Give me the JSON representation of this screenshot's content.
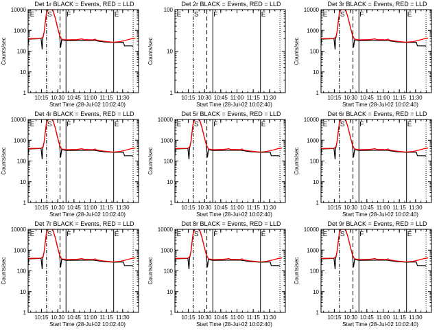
{
  "common": {
    "ylabel": "Counts/sec",
    "xlabel": "Start Time (28-Jul-02 10:02:40)",
    "xticks": [
      {
        "label": "10:15",
        "t": 12.33
      },
      {
        "label": "10:30",
        "t": 27.33
      },
      {
        "label": "10:45",
        "t": 42.33
      },
      {
        "label": "11:00",
        "t": 57.33
      },
      {
        "label": "11:15",
        "t": 72.33
      },
      {
        "label": "11:30",
        "t": 87.33
      }
    ],
    "xrange_minutes": [
      0,
      102
    ],
    "markers": [
      {
        "label": "E",
        "t": 1,
        "style": "none"
      },
      {
        "label": "S",
        "t": 17,
        "style": "dashdot"
      },
      {
        "label": "",
        "t": 29.5,
        "style": "dashed"
      },
      {
        "label": "F",
        "t": 35,
        "style": "solid"
      },
      {
        "label": "E",
        "t": 79,
        "style": "solid"
      },
      {
        "label": "",
        "t": 97,
        "style": "dotted"
      }
    ],
    "colors": {
      "events": "#000000",
      "lld": "#ff0000"
    }
  },
  "chart_data": [
    {
      "type": "line",
      "title": "Det 1r BLACK = Events, RED = LLD",
      "ylim": [
        1,
        10000
      ],
      "yticks": [
        "1",
        "10",
        "100",
        "1000",
        "10000"
      ],
      "has_data": true
    },
    {
      "type": "line",
      "title": "Det 2r BLACK = Events, RED = LLD",
      "ylim": [
        1,
        100
      ],
      "yticks": [
        "1",
        "10",
        "100"
      ],
      "has_data": false
    },
    {
      "type": "line",
      "title": "Det 3r BLACK = Events, RED = LLD",
      "ylim": [
        1,
        10000
      ],
      "yticks": [
        "1",
        "10",
        "100",
        "1000",
        "10000"
      ],
      "has_data": true
    },
    {
      "type": "line",
      "title": "Det 4r BLACK = Events, RED = LLD",
      "ylim": [
        1,
        10000
      ],
      "yticks": [
        "1",
        "10",
        "100",
        "1000",
        "10000"
      ],
      "has_data": true
    },
    {
      "type": "line",
      "title": "Det 5r BLACK = Events, RED = LLD",
      "ylim": [
        1,
        10000
      ],
      "yticks": [
        "1",
        "10",
        "100",
        "1000",
        "10000"
      ],
      "has_data": true
    },
    {
      "type": "line",
      "title": "Det 6r BLACK = Events, RED = LLD",
      "ylim": [
        1,
        10000
      ],
      "yticks": [
        "1",
        "10",
        "100",
        "1000",
        "10000"
      ],
      "has_data": true
    },
    {
      "type": "line",
      "title": "Det 7r BLACK = Events, RED = LLD",
      "ylim": [
        1,
        10000
      ],
      "yticks": [
        "1",
        "10",
        "100",
        "1000",
        "10000"
      ],
      "has_data": true
    },
    {
      "type": "line",
      "title": "Det 8r BLACK = Events, RED = LLD",
      "ylim": [
        1,
        10000
      ],
      "yticks": [
        "1",
        "10",
        "100",
        "1000",
        "10000"
      ],
      "has_data": true
    },
    {
      "type": "line",
      "title": "Det 9r BLACK = Events, RED = LLD",
      "ylim": [
        1,
        10000
      ],
      "yticks": [
        "1",
        "10",
        "100",
        "1000",
        "10000"
      ],
      "has_data": true
    }
  ],
  "series": {
    "events_black": [
      [
        0,
        200
      ],
      [
        0.5,
        380
      ],
      [
        12,
        400
      ],
      [
        13,
        120
      ],
      [
        13.5,
        400
      ],
      [
        15,
        1000
      ],
      [
        16,
        3000
      ],
      [
        17,
        7000
      ],
      [
        19,
        11000
      ],
      [
        21,
        12000
      ],
      [
        23,
        9000
      ],
      [
        25,
        4000
      ],
      [
        27,
        1500
      ],
      [
        29,
        600
      ],
      [
        30,
        150
      ],
      [
        31,
        350
      ],
      [
        35,
        320
      ],
      [
        60,
        330
      ],
      [
        70,
        280
      ],
      [
        79,
        260
      ],
      [
        88,
        270
      ],
      [
        89,
        180
      ],
      [
        96,
        180
      ],
      [
        97,
        170
      ]
    ],
    "lld_red": [
      [
        0,
        400
      ],
      [
        12,
        410
      ],
      [
        14,
        500
      ],
      [
        15,
        1000
      ],
      [
        16,
        3000
      ],
      [
        17,
        7000
      ],
      [
        19,
        11000
      ],
      [
        21,
        12000
      ],
      [
        23,
        9000
      ],
      [
        25,
        4000
      ],
      [
        27,
        1500
      ],
      [
        29,
        600
      ],
      [
        31,
        380
      ],
      [
        35,
        350
      ],
      [
        45,
        360
      ],
      [
        50,
        390
      ],
      [
        51,
        360
      ],
      [
        60,
        350
      ],
      [
        62,
        380
      ],
      [
        63,
        340
      ],
      [
        70,
        300
      ],
      [
        79,
        270
      ],
      [
        85,
        290
      ],
      [
        90,
        330
      ],
      [
        96,
        400
      ],
      [
        99,
        420
      ]
    ]
  }
}
